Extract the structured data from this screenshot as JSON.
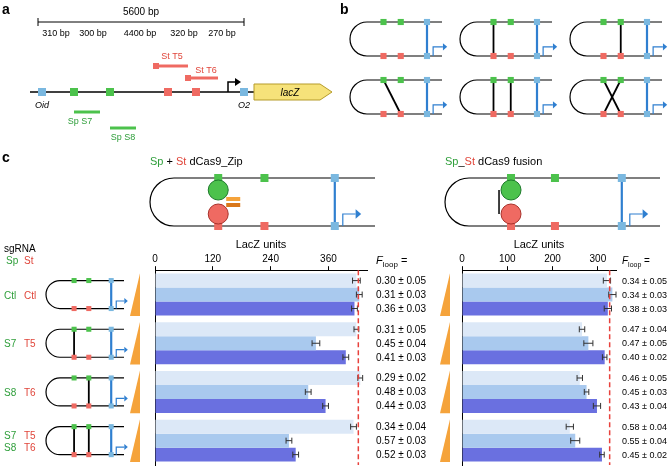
{
  "figure": {
    "panel_a": {
      "label": "a",
      "span": "5600 bp",
      "segments": [
        "310 bp",
        "300 bp",
        "4400 bp",
        "320 bp",
        "270 bp"
      ],
      "sites": {
        "oid": "Oid",
        "sp_s7": "Sp S7",
        "sp_s8": "Sp S8",
        "st_t5": "St T5",
        "st_t6": "St T6",
        "o2": "O2"
      },
      "gene": "lacZ"
    },
    "panel_b": {
      "label": "b"
    },
    "panel_c": {
      "label": "c",
      "constructs": [
        [
          {
            "text": "Sp",
            "color": "#2e9e3a"
          },
          {
            "text": " + "
          },
          {
            "text": "St",
            "color": "#e0453a"
          },
          {
            "text": " dCas9_Zip"
          }
        ],
        [
          {
            "text": "Sp",
            "color": "#2e9e3a"
          },
          {
            "text": "_"
          },
          {
            "text": "St",
            "color": "#e0453a"
          },
          {
            "text": " dCas9 fusion"
          }
        ]
      ],
      "sgrna_header": "sgRNA",
      "sgrna_columns": [
        {
          "text": "Sp",
          "color": "#2e9e3a"
        },
        {
          "text": "St",
          "color": "#e0453a"
        }
      ],
      "sgrna_rows": [
        [
          {
            "sp": "Ctl",
            "st": "Ctl"
          }
        ],
        [
          {
            "sp": "S7",
            "st": "T5"
          }
        ],
        [
          {
            "sp": "S8",
            "st": "T6"
          }
        ],
        [
          {
            "sp": "S7",
            "st": "T5"
          },
          {
            "sp": "S8",
            "st": "T6"
          }
        ]
      ],
      "f_loop_header": {
        "symbol": "F",
        "subscript": "loop",
        "suffix": " ="
      }
    }
  },
  "chart_data": [
    {
      "type": "bar",
      "orientation": "horizontal",
      "categories": [
        null,
        null,
        null,
        null
      ],
      "x_label": "LacZ units",
      "xlim": [
        0,
        440
      ],
      "xticks": [
        0,
        120,
        240,
        360
      ],
      "tick_labels": "x",
      "grid": false,
      "reference_line": 422,
      "series": [
        {
          "color": "#dce8f7",
          "values": [
            418,
            418,
            426,
            412
          ],
          "errors": [
            8,
            5,
            5,
            6
          ],
          "f_loop": [
            "0.30 ± 0.05",
            "0.31 ± 0.05",
            "0.29 ± 0.02",
            "0.34 ± 0.04"
          ]
        },
        {
          "color": "#a9c9ee",
          "values": [
            424,
            334,
            318,
            278
          ],
          "errors": [
            6,
            8,
            6,
            6
          ],
          "f_loop": [
            "0.31 ± 0.03",
            "0.45 ± 0.04",
            "0.48 ± 0.03",
            "0.57 ± 0.03"
          ]
        },
        {
          "color": "#6a70e0",
          "values": [
            414,
            396,
            354,
            292
          ],
          "errors": [
            6,
            6,
            6,
            6
          ],
          "f_loop": [
            "0.36 ± 0.03",
            "0.41 ± 0.03",
            "0.44 ± 0.03",
            "0.52 ± 0.03"
          ]
        }
      ]
    },
    {
      "type": "bar",
      "orientation": "horizontal",
      "categories": [
        null,
        null,
        null,
        null
      ],
      "x_label": "LacZ units",
      "xlim": [
        0,
        340
      ],
      "xticks": [
        0,
        100,
        200,
        300
      ],
      "tick_labels": "x",
      "grid": false,
      "reference_line": 326,
      "series": [
        {
          "color": "#dce8f7",
          "values": [
            320,
            265,
            260,
            238
          ],
          "errors": [
            8,
            6,
            6,
            8
          ],
          "f_loop": [
            "0.34 ± 0.05",
            "0.47 ± 0.04",
            "0.46 ± 0.05",
            "0.58 ± 0.04"
          ]
        },
        {
          "color": "#a9c9ee",
          "values": [
            332,
            279,
            275,
            250
          ],
          "errors": [
            8,
            10,
            5,
            10
          ],
          "f_loop": [
            "0.34 ± 0.03",
            "0.47 ± 0.05",
            "0.45 ± 0.03",
            "0.55 ± 0.04"
          ]
        },
        {
          "color": "#6a70e0",
          "values": [
            322,
            315,
            298,
            309
          ],
          "errors": [
            8,
            5,
            8,
            5
          ],
          "f_loop": [
            "0.38 ± 0.03",
            "0.40 ± 0.02",
            "0.43 ± 0.04",
            "0.45 ± 0.02"
          ]
        }
      ]
    }
  ]
}
